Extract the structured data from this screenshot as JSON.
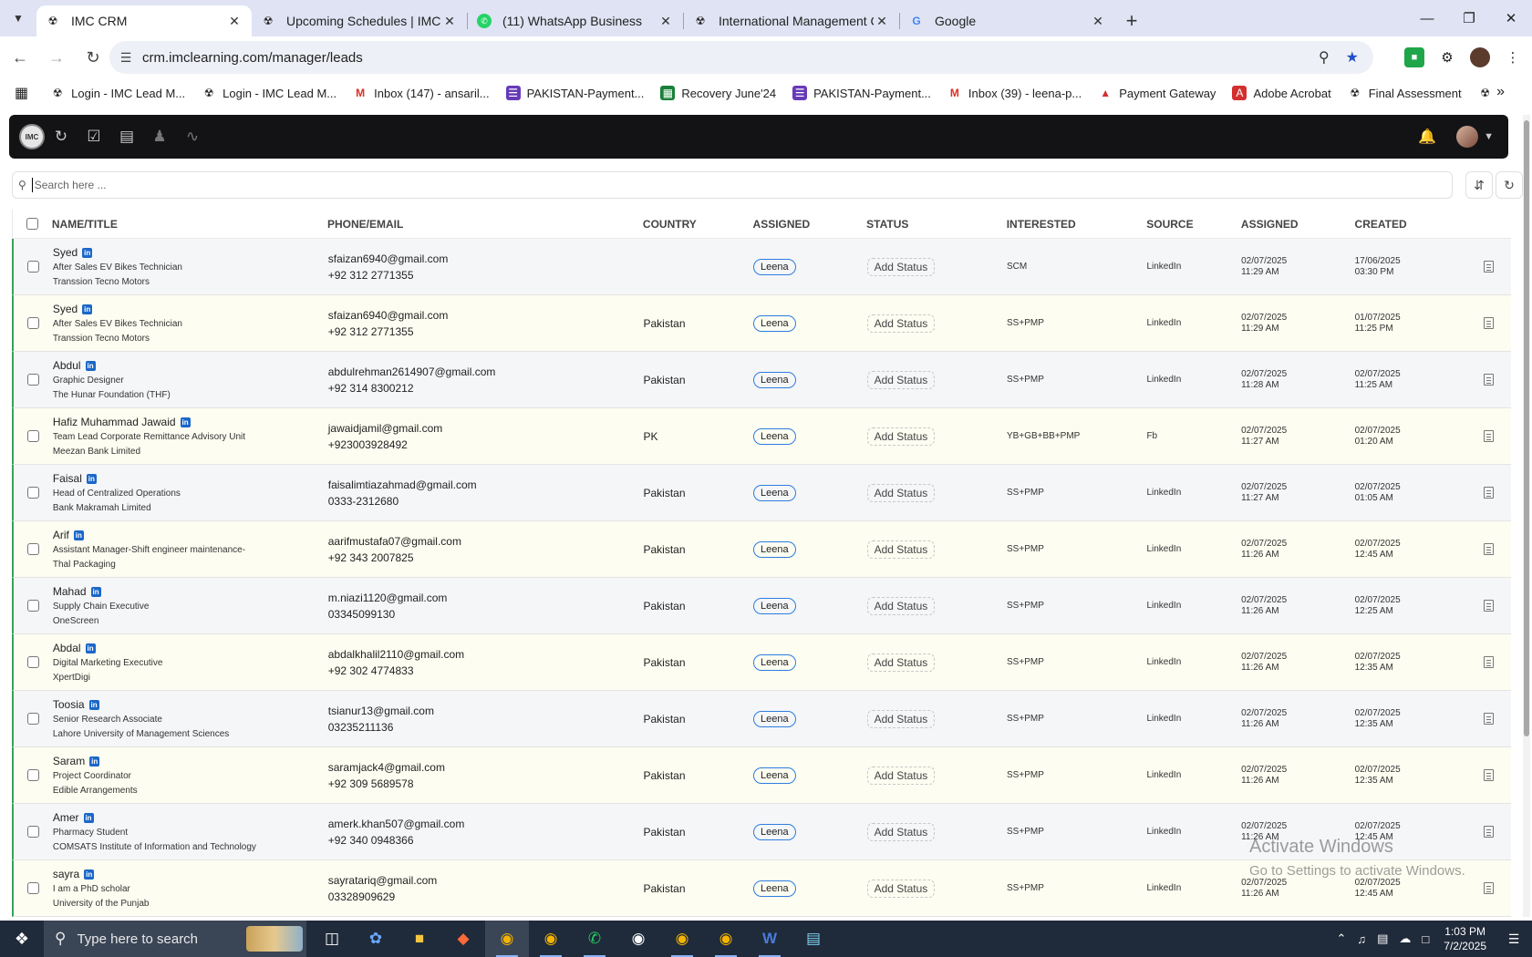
{
  "browser": {
    "tabs": [
      {
        "title": "IMC CRM",
        "active": true
      },
      {
        "title": "Upcoming Schedules | IMC Cer",
        "active": false
      },
      {
        "title": "(11) WhatsApp Business",
        "active": false
      },
      {
        "title": "International Management Con",
        "active": false
      },
      {
        "title": "Google",
        "active": false
      }
    ],
    "url": "crm.imclearning.com/manager/leads",
    "bookmarks": [
      "Login - IMC Lead M...",
      "Login - IMC Lead M...",
      "Inbox (147) - ansaril...",
      "PAKISTAN-Payment...",
      "Recovery June'24",
      "PAKISTAN-Payment...",
      "Inbox (39) - leena-p...",
      "Payment Gateway",
      "Adobe Acrobat",
      "Final Assessment"
    ]
  },
  "app": {
    "logo_text": "IMC",
    "search_placeholder": "Search here ...",
    "columns": [
      "Name/Title",
      "Phone/Email",
      "Country",
      "Assigned",
      "Status",
      "Interested",
      "Source",
      "Assigned",
      "Created"
    ],
    "linkedin_badge": "in",
    "status_label": "Add Status",
    "rows": [
      {
        "name": "Syed",
        "title": "After Sales EV Bikes Technician",
        "company": "Transsion Tecno Motors",
        "email": "sfaizan6940@gmail.com",
        "phone": "+92 312 2771355",
        "country": "",
        "assigned_to": "Leena",
        "interested": "SCM",
        "source": "LinkedIn",
        "assigned_date": "02/07/2025",
        "assigned_time": "11:29 AM",
        "created_date": "17/06/2025",
        "created_time": "03:30 PM"
      },
      {
        "name": "Syed",
        "title": "After Sales EV Bikes Technician",
        "company": "Transsion Tecno Motors",
        "email": "sfaizan6940@gmail.com",
        "phone": "+92 312 2771355",
        "country": "Pakistan",
        "assigned_to": "Leena",
        "interested": "SS+PMP",
        "source": "LinkedIn",
        "assigned_date": "02/07/2025",
        "assigned_time": "11:29 AM",
        "created_date": "01/07/2025",
        "created_time": "11:25 PM"
      },
      {
        "name": "Abdul",
        "title": "Graphic Designer",
        "company": "The Hunar Foundation (THF)",
        "email": "abdulrehman2614907@gmail.com",
        "phone": "+92 314 8300212",
        "country": "Pakistan",
        "assigned_to": "Leena",
        "interested": "SS+PMP",
        "source": "LinkedIn",
        "assigned_date": "02/07/2025",
        "assigned_time": "11:28 AM",
        "created_date": "02/07/2025",
        "created_time": "11:25 AM"
      },
      {
        "name": "Hafiz Muhammad Jawaid",
        "title": "Team Lead Corporate Remittance Advisory Unit",
        "company": "Meezan Bank Limited",
        "email": "jawaidjamil@gmail.com",
        "phone": "+923003928492",
        "country": "PK",
        "assigned_to": "Leena",
        "interested": "YB+GB+BB+PMP",
        "source": "Fb",
        "assigned_date": "02/07/2025",
        "assigned_time": "11:27 AM",
        "created_date": "02/07/2025",
        "created_time": "01:20 AM"
      },
      {
        "name": "Faisal",
        "title": "Head of Centralized Operations",
        "company": "Bank Makramah Limited",
        "email": "faisalimtiazahmad@gmail.com",
        "phone": "0333-2312680",
        "country": "Pakistan",
        "assigned_to": "Leena",
        "interested": "SS+PMP",
        "source": "LinkedIn",
        "assigned_date": "02/07/2025",
        "assigned_time": "11:27 AM",
        "created_date": "02/07/2025",
        "created_time": "01:05 AM"
      },
      {
        "name": "Arif",
        "title": "Assistant Manager-Shift engineer maintenance-",
        "company": "Thal Packaging",
        "email": "aarifmustafa07@gmail.com",
        "phone": "+92 343 2007825",
        "country": "Pakistan",
        "assigned_to": "Leena",
        "interested": "SS+PMP",
        "source": "LinkedIn",
        "assigned_date": "02/07/2025",
        "assigned_time": "11:26 AM",
        "created_date": "02/07/2025",
        "created_time": "12:45 AM"
      },
      {
        "name": "Mahad",
        "title": "Supply Chain Executive",
        "company": "OneScreen",
        "email": "m.niazi1120@gmail.com",
        "phone": "03345099130",
        "country": "Pakistan",
        "assigned_to": "Leena",
        "interested": "SS+PMP",
        "source": "LinkedIn",
        "assigned_date": "02/07/2025",
        "assigned_time": "11:26 AM",
        "created_date": "02/07/2025",
        "created_time": "12:25 AM"
      },
      {
        "name": "Abdal",
        "title": "Digital Marketing Executive",
        "company": "XpertDigi",
        "email": "abdalkhalil2110@gmail.com",
        "phone": "+92 302 4774833",
        "country": "Pakistan",
        "assigned_to": "Leena",
        "interested": "SS+PMP",
        "source": "LinkedIn",
        "assigned_date": "02/07/2025",
        "assigned_time": "11:26 AM",
        "created_date": "02/07/2025",
        "created_time": "12:35 AM"
      },
      {
        "name": "Toosia",
        "title": "Senior Research Associate",
        "company": "Lahore University of Management Sciences",
        "email": "tsianur13@gmail.com",
        "phone": "03235211136",
        "country": "Pakistan",
        "assigned_to": "Leena",
        "interested": "SS+PMP",
        "source": "LinkedIn",
        "assigned_date": "02/07/2025",
        "assigned_time": "11:26 AM",
        "created_date": "02/07/2025",
        "created_time": "12:35 AM"
      },
      {
        "name": "Saram",
        "title": "Project Coordinator",
        "company": "Edible Arrangements",
        "email": "saramjack4@gmail.com",
        "phone": "+92 309 5689578",
        "country": "Pakistan",
        "assigned_to": "Leena",
        "interested": "SS+PMP",
        "source": "LinkedIn",
        "assigned_date": "02/07/2025",
        "assigned_time": "11:26 AM",
        "created_date": "02/07/2025",
        "created_time": "12:35 AM"
      },
      {
        "name": "Amer",
        "title": "Pharmacy Student",
        "company": "COMSATS Institute of Information and Technology",
        "email": "amerk.khan507@gmail.com",
        "phone": "+92 340 0948366",
        "country": "Pakistan",
        "assigned_to": "Leena",
        "interested": "SS+PMP",
        "source": "LinkedIn",
        "assigned_date": "02/07/2025",
        "assigned_time": "11:26 AM",
        "created_date": "02/07/2025",
        "created_time": "12:45 AM"
      },
      {
        "name": "sayra",
        "title": "I am a PhD scholar",
        "company": "University of the Punjab",
        "email": "sayratariq@gmail.com",
        "phone": "03328909629",
        "country": "Pakistan",
        "assigned_to": "Leena",
        "interested": "SS+PMP",
        "source": "LinkedIn",
        "assigned_date": "02/07/2025",
        "assigned_time": "11:26 AM",
        "created_date": "02/07/2025",
        "created_time": "12:45 AM"
      }
    ]
  },
  "watermark": {
    "line1": "Activate Windows",
    "line2": "Go to Settings to activate Windows."
  },
  "taskbar": {
    "search_placeholder": "Type here to search",
    "time": "1:03 PM",
    "date": "7/2/2025"
  }
}
